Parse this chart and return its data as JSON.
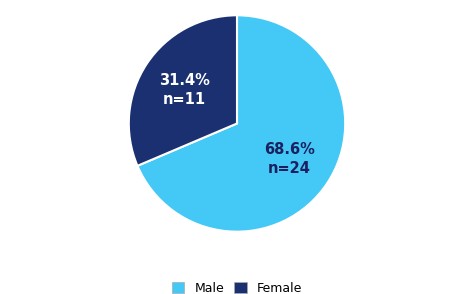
{
  "slices": [
    "Male",
    "Female"
  ],
  "values": [
    68.6,
    31.4
  ],
  "counts": [
    "n=24",
    "n=11"
  ],
  "percentages": [
    "68.6%",
    "31.4%"
  ],
  "colors": [
    "#44C8F5",
    "#1A3070"
  ],
  "background_color": "#ffffff",
  "legend_labels": [
    "Male",
    "Female"
  ],
  "startangle": 90,
  "text_colors": [
    "#1a2060",
    "#ffffff"
  ]
}
